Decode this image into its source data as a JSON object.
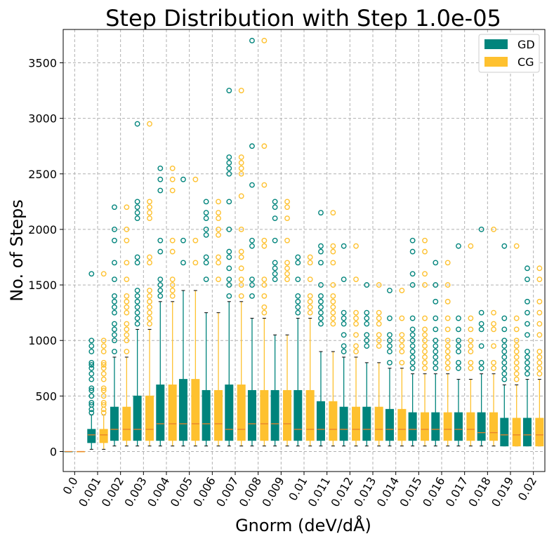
{
  "chart_data": {
    "type": "box",
    "title": "Step Distribution with Step 1.0e-05",
    "xlabel": "Gnorm (deV/dÅ)",
    "ylabel": "No. of Steps",
    "ylim": [
      -180,
      3800
    ],
    "yticks": [
      0,
      500,
      1000,
      1500,
      2000,
      2500,
      3000,
      3500
    ],
    "grid": true,
    "legend_position": "top-right",
    "categories": [
      "0.0",
      "0.001",
      "0.002",
      "0.003",
      "0.004",
      "0.005",
      "0.006",
      "0.007",
      "0.008",
      "0.009",
      "0.01",
      "0.011",
      "0.012",
      "0.013",
      "0.014",
      "0.015",
      "0.016",
      "0.017",
      "0.018",
      "0.019",
      "0.02"
    ],
    "series": [
      {
        "name": "GD",
        "color": "#00847c",
        "boxes": [
          {
            "q1": 0,
            "median": 0,
            "q3": 0,
            "whislo": 0,
            "whishi": 0,
            "fliers": []
          },
          {
            "q1": 80,
            "median": 150,
            "q3": 200,
            "whislo": 20,
            "whishi": 330,
            "fliers": [
              350,
              380,
              420,
              440,
              500,
              550,
              570,
              650,
              700,
              750,
              780,
              800,
              900,
              950,
              1000,
              1600
            ]
          },
          {
            "q1": 100,
            "median": 200,
            "q3": 400,
            "whislo": 50,
            "whishi": 850,
            "fliers": [
              900,
              1000,
              1050,
              1100,
              1150,
              1250,
              1300,
              1350,
              1400,
              1550,
              1700,
              1900,
              2000,
              2200
            ]
          },
          {
            "q1": 100,
            "median": 200,
            "q3": 500,
            "whislo": 50,
            "whishi": 1100,
            "fliers": [
              1150,
              1200,
              1250,
              1300,
              1350,
              1400,
              1450,
              1700,
              1750,
              2100,
              2150,
              2200,
              2250,
              2950
            ]
          },
          {
            "q1": 100,
            "median": 250,
            "q3": 600,
            "whislo": 50,
            "whishi": 1350,
            "fliers": [
              1400,
              1450,
              1500,
              1550,
              1800,
              1900,
              2350,
              2450,
              2550
            ]
          },
          {
            "q1": 100,
            "median": 250,
            "q3": 650,
            "whislo": 50,
            "whishi": 1450,
            "fliers": [
              1700,
              1900,
              2450
            ]
          },
          {
            "q1": 100,
            "median": 250,
            "q3": 550,
            "whislo": 50,
            "whishi": 1250,
            "fliers": [
              1550,
              1700,
              1750,
              1950,
              2000,
              2100,
              2150,
              2250
            ]
          },
          {
            "q1": 100,
            "median": 200,
            "q3": 600,
            "whislo": 50,
            "whishi": 1350,
            "fliers": [
              1400,
              1500,
              1550,
              1650,
              1750,
              1800,
              2000,
              2250,
              2500,
              2550,
              2600,
              2650,
              3250
            ]
          },
          {
            "q1": 100,
            "median": 250,
            "q3": 550,
            "whislo": 50,
            "whishi": 1200,
            "fliers": [
              1400,
              1500,
              1550,
              1850,
              1900,
              2400,
              2750,
              3700
            ]
          },
          {
            "q1": 100,
            "median": 250,
            "q3": 550,
            "whislo": 50,
            "whishi": 1050,
            "fliers": [
              1550,
              1600,
              1650,
              1700,
              1900,
              2100,
              2200,
              2250
            ]
          },
          {
            "q1": 100,
            "median": 200,
            "q3": 550,
            "whislo": 50,
            "whishi": 1200,
            "fliers": [
              1250,
              1300,
              1350,
              1400,
              1550,
              1700,
              1750
            ]
          },
          {
            "q1": 100,
            "median": 200,
            "q3": 450,
            "whislo": 50,
            "whishi": 900,
            "fliers": [
              1150,
              1200,
              1250,
              1300,
              1350,
              1400,
              1500,
              1700,
              1800,
              1850,
              2150
            ]
          },
          {
            "q1": 100,
            "median": 200,
            "q3": 400,
            "whislo": 50,
            "whishi": 850,
            "fliers": [
              900,
              950,
              1050,
              1150,
              1200,
              1250,
              1550,
              1850
            ]
          },
          {
            "q1": 100,
            "median": 200,
            "q3": 400,
            "whislo": 50,
            "whishi": 800,
            "fliers": [
              950,
              1000,
              1050,
              1150,
              1200,
              1250,
              1500
            ]
          },
          {
            "q1": 100,
            "median": 200,
            "q3": 380,
            "whislo": 50,
            "whishi": 750,
            "fliers": [
              800,
              900,
              950,
              1000,
              1050,
              1200,
              1450
            ]
          },
          {
            "q1": 100,
            "median": 200,
            "q3": 350,
            "whislo": 50,
            "whishi": 700,
            "fliers": [
              750,
              800,
              850,
              900,
              950,
              1000,
              1050,
              1100,
              1200,
              1500,
              1600,
              1800,
              1900
            ]
          },
          {
            "q1": 100,
            "median": 200,
            "q3": 350,
            "whislo": 50,
            "whishi": 700,
            "fliers": [
              750,
              800,
              850,
              900,
              950,
              1000,
              1100,
              1200,
              1350,
              1500,
              1700
            ]
          },
          {
            "q1": 100,
            "median": 200,
            "q3": 350,
            "whislo": 50,
            "whishi": 650,
            "fliers": [
              750,
              800,
              900,
              950,
              1000,
              1100,
              1200,
              1850
            ]
          },
          {
            "q1": 100,
            "median": 170,
            "q3": 350,
            "whislo": 50,
            "whishi": 700,
            "fliers": [
              750,
              800,
              950,
              1100,
              1150,
              1250,
              2000
            ]
          },
          {
            "q1": 50,
            "median": 150,
            "q3": 300,
            "whislo": 50,
            "whishi": 600,
            "fliers": [
              650,
              700,
              750,
              800,
              850,
              900,
              950,
              1000,
              1100,
              1200,
              1850
            ]
          },
          {
            "q1": 50,
            "median": 150,
            "q3": 300,
            "whislo": 50,
            "whishi": 650,
            "fliers": [
              700,
              750,
              800,
              850,
              900,
              1050,
              1150,
              1250,
              1350,
              1550,
              1650
            ]
          }
        ]
      },
      {
        "name": "CG",
        "color": "#fec12f",
        "boxes": [
          {
            "q1": 0,
            "median": 0,
            "q3": 0,
            "whislo": 0,
            "whishi": 0,
            "fliers": []
          },
          {
            "q1": 80,
            "median": 150,
            "q3": 200,
            "whislo": 20,
            "whishi": 330,
            "fliers": [
              350,
              380,
              420,
              440,
              500,
              550,
              570,
              650,
              700,
              750,
              780,
              800,
              900,
              950,
              1000,
              1600
            ]
          },
          {
            "q1": 100,
            "median": 200,
            "q3": 400,
            "whislo": 50,
            "whishi": 850,
            "fliers": [
              900,
              1000,
              1050,
              1100,
              1150,
              1250,
              1300,
              1350,
              1400,
              1550,
              1700,
              1900,
              2000,
              2200
            ]
          },
          {
            "q1": 100,
            "median": 200,
            "q3": 500,
            "whislo": 50,
            "whishi": 1100,
            "fliers": [
              1150,
              1200,
              1250,
              1300,
              1350,
              1400,
              1450,
              1700,
              1750,
              2100,
              2150,
              2200,
              2250,
              2950
            ]
          },
          {
            "q1": 100,
            "median": 250,
            "q3": 600,
            "whislo": 50,
            "whishi": 1350,
            "fliers": [
              1400,
              1450,
              1500,
              1550,
              1800,
              1900,
              2350,
              2450,
              2550
            ]
          },
          {
            "q1": 100,
            "median": 250,
            "q3": 650,
            "whislo": 50,
            "whishi": 1450,
            "fliers": [
              1700,
              1900,
              2450
            ]
          },
          {
            "q1": 100,
            "median": 250,
            "q3": 550,
            "whislo": 50,
            "whishi": 1250,
            "fliers": [
              1550,
              1700,
              1750,
              1950,
              2000,
              2100,
              2150,
              2250
            ]
          },
          {
            "q1": 100,
            "median": 200,
            "q3": 600,
            "whislo": 50,
            "whishi": 1350,
            "fliers": [
              1400,
              1500,
              1550,
              1650,
              1750,
              1800,
              2000,
              2300,
              2500,
              2550,
              2600,
              2650,
              3250
            ]
          },
          {
            "q1": 100,
            "median": 250,
            "q3": 550,
            "whislo": 50,
            "whishi": 1200,
            "fliers": [
              1250,
              1300,
              1400,
              1500,
              1550,
              1850,
              1900,
              2400,
              2750,
              3700
            ]
          },
          {
            "q1": 100,
            "median": 250,
            "q3": 550,
            "whislo": 50,
            "whishi": 1050,
            "fliers": [
              1550,
              1600,
              1650,
              1700,
              1900,
              2100,
              2200,
              2250
            ]
          },
          {
            "q1": 100,
            "median": 200,
            "q3": 550,
            "whislo": 50,
            "whishi": 1200,
            "fliers": [
              1250,
              1300,
              1350,
              1400,
              1550,
              1700,
              1750
            ]
          },
          {
            "q1": 100,
            "median": 200,
            "q3": 450,
            "whislo": 50,
            "whishi": 900,
            "fliers": [
              1150,
              1200,
              1250,
              1300,
              1350,
              1400,
              1500,
              1700,
              1800,
              1850,
              2150
            ]
          },
          {
            "q1": 100,
            "median": 200,
            "q3": 400,
            "whislo": 50,
            "whishi": 850,
            "fliers": [
              900,
              950,
              1050,
              1150,
              1200,
              1250,
              1550,
              1850
            ]
          },
          {
            "q1": 100,
            "median": 200,
            "q3": 400,
            "whislo": 50,
            "whishi": 800,
            "fliers": [
              950,
              1000,
              1050,
              1150,
              1200,
              1250,
              1500
            ]
          },
          {
            "q1": 100,
            "median": 200,
            "q3": 380,
            "whislo": 50,
            "whishi": 750,
            "fliers": [
              800,
              900,
              950,
              1000,
              1050,
              1200,
              1450
            ]
          },
          {
            "q1": 100,
            "median": 200,
            "q3": 350,
            "whislo": 50,
            "whishi": 700,
            "fliers": [
              750,
              800,
              850,
              900,
              950,
              1000,
              1050,
              1100,
              1200,
              1500,
              1600,
              1800,
              1900
            ]
          },
          {
            "q1": 100,
            "median": 200,
            "q3": 350,
            "whislo": 50,
            "whishi": 700,
            "fliers": [
              750,
              800,
              850,
              900,
              950,
              1000,
              1100,
              1200,
              1350,
              1500,
              1700
            ]
          },
          {
            "q1": 100,
            "median": 200,
            "q3": 350,
            "whislo": 50,
            "whishi": 650,
            "fliers": [
              750,
              800,
              900,
              950,
              1000,
              1100,
              1200,
              1850
            ]
          },
          {
            "q1": 100,
            "median": 170,
            "q3": 350,
            "whislo": 50,
            "whishi": 700,
            "fliers": [
              750,
              800,
              950,
              1100,
              1150,
              1250,
              2000
            ]
          },
          {
            "q1": 50,
            "median": 150,
            "q3": 300,
            "whislo": 50,
            "whishi": 600,
            "fliers": [
              650,
              700,
              750,
              800,
              850,
              900,
              950,
              1000,
              1100,
              1200,
              1850
            ]
          },
          {
            "q1": 50,
            "median": 150,
            "q3": 300,
            "whislo": 50,
            "whishi": 650,
            "fliers": [
              700,
              750,
              800,
              850,
              900,
              1050,
              1150,
              1250,
              1350,
              1550,
              1650
            ]
          }
        ]
      }
    ],
    "median_color": "#e8822a"
  }
}
